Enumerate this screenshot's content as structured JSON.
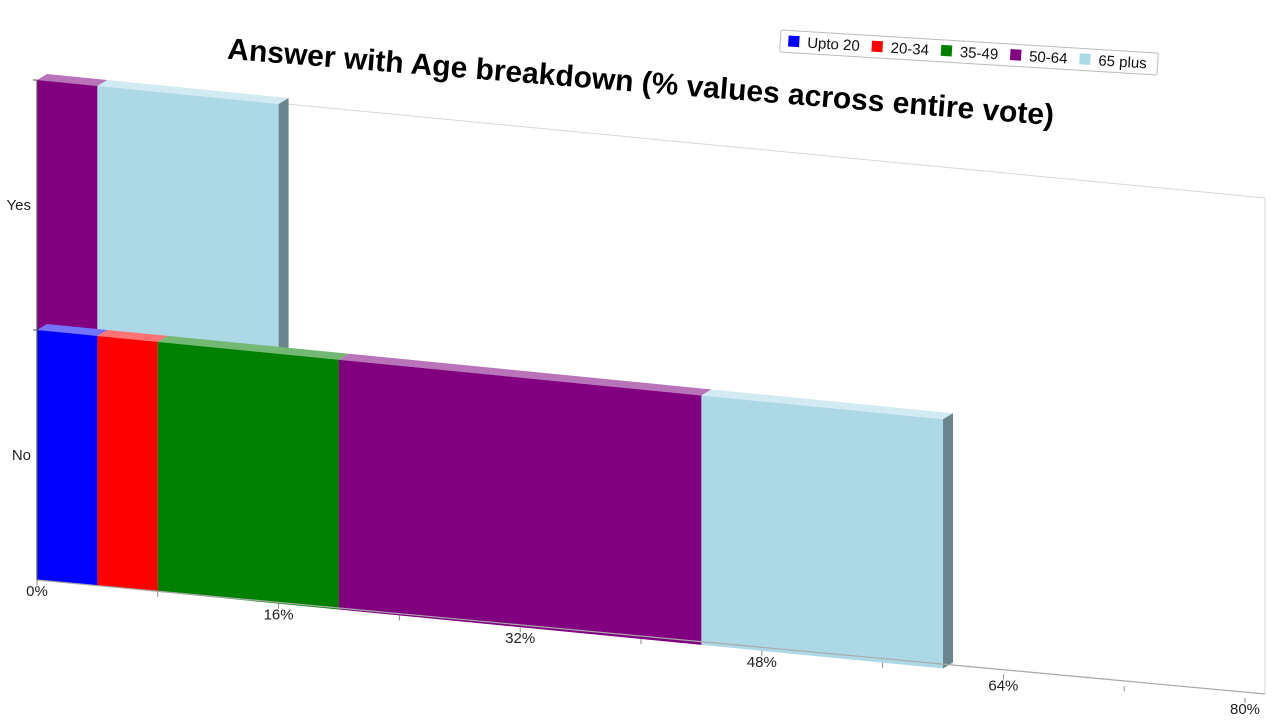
{
  "chart_data": {
    "type": "bar",
    "orientation": "horizontal",
    "stacked": true,
    "title": "Answer with Age breakdown (% values across entire vote)",
    "categories": [
      "Yes",
      "No"
    ],
    "series": [
      {
        "name": "Upto 20",
        "color": "#0000ff",
        "values": [
          0,
          4
        ]
      },
      {
        "name": "20-34",
        "color": "#ff0000",
        "values": [
          0,
          4
        ]
      },
      {
        "name": "35-49",
        "color": "#008000",
        "values": [
          0,
          12
        ]
      },
      {
        "name": "50-64",
        "color": "#800080",
        "values": [
          4,
          24
        ]
      },
      {
        "name": "65 plus",
        "color": "#add8e6",
        "values": [
          12,
          16
        ]
      }
    ],
    "xlim": [
      0,
      80
    ],
    "x_ticks": [
      "0%",
      "16%",
      "32%",
      "48%",
      "64%",
      "80%"
    ],
    "legend_position": "top-right"
  }
}
